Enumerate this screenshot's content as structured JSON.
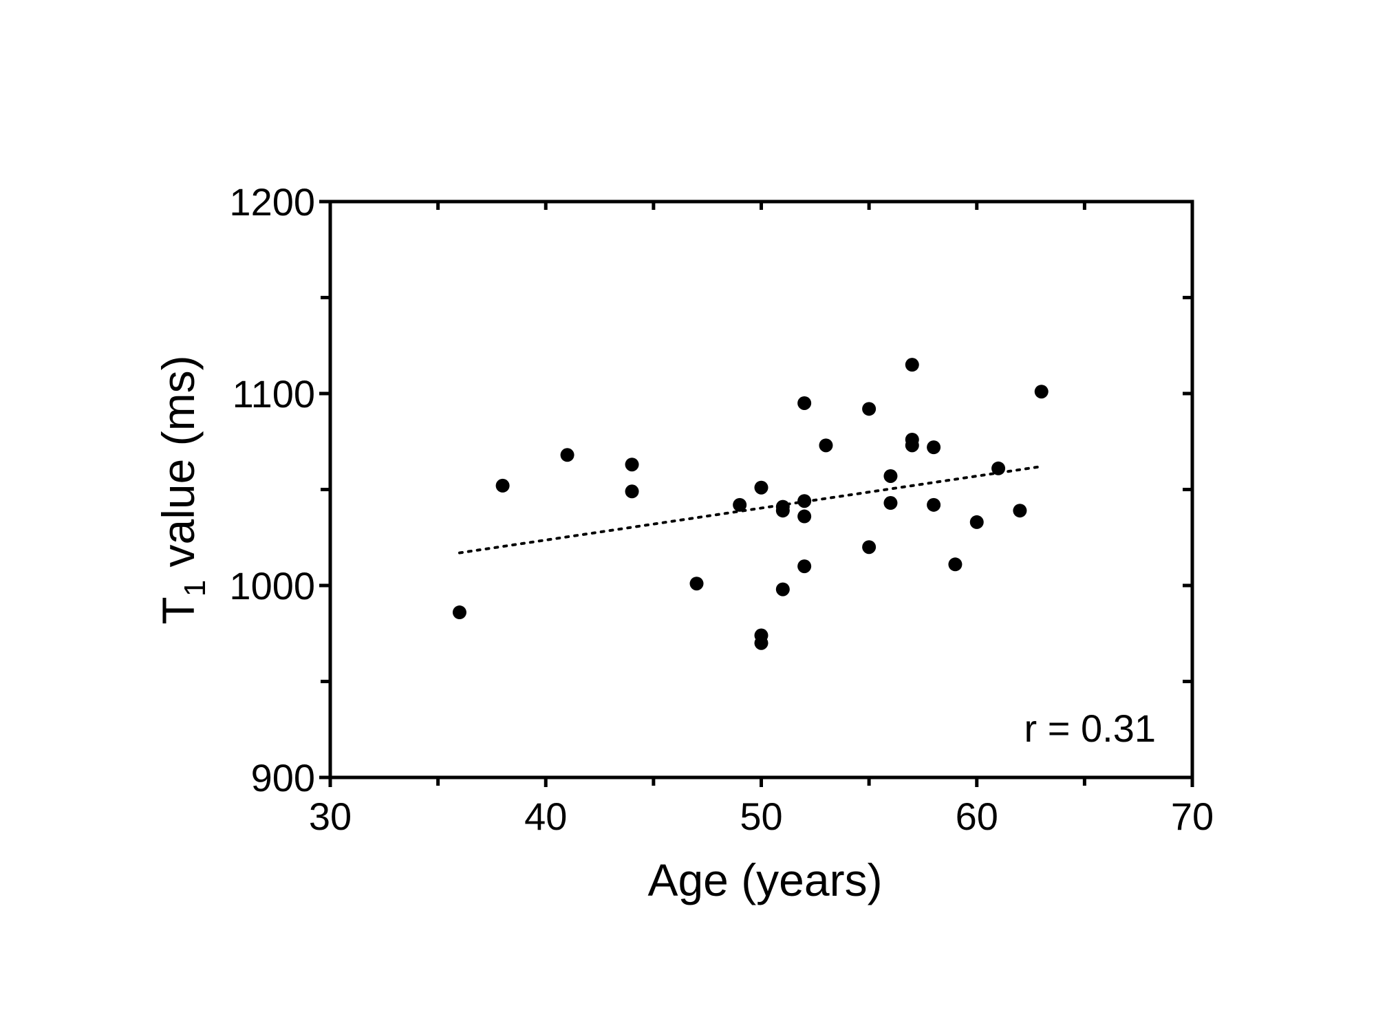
{
  "chart_data": {
    "type": "scatter",
    "xlabel": "Age (years)",
    "ylabel_main": "T",
    "ylabel_sub": "1",
    "ylabel_rest": " value (ms)",
    "xlim": [
      30,
      70
    ],
    "ylim": [
      900,
      1200
    ],
    "x_ticks": [
      30,
      40,
      50,
      60,
      70
    ],
    "x_minor_ticks": [
      35,
      45,
      55,
      65
    ],
    "y_ticks": [
      900,
      1000,
      1100,
      1200
    ],
    "y_minor_ticks": [
      950,
      1050,
      1150
    ],
    "annotation": "r = 0.31",
    "grid": false,
    "marker_color": "#000000",
    "trendline": {
      "style": "dotted",
      "x": [
        36,
        63
      ],
      "y": [
        1017,
        1062
      ]
    },
    "points": [
      {
        "x": 36,
        "y": 986
      },
      {
        "x": 38,
        "y": 1052
      },
      {
        "x": 41,
        "y": 1068
      },
      {
        "x": 44,
        "y": 1063
      },
      {
        "x": 44,
        "y": 1049
      },
      {
        "x": 47,
        "y": 1001
      },
      {
        "x": 49,
        "y": 1042
      },
      {
        "x": 50,
        "y": 1051
      },
      {
        "x": 50,
        "y": 974
      },
      {
        "x": 50,
        "y": 970
      },
      {
        "x": 51,
        "y": 1041
      },
      {
        "x": 51,
        "y": 1039
      },
      {
        "x": 51,
        "y": 998
      },
      {
        "x": 52,
        "y": 1095
      },
      {
        "x": 52,
        "y": 1044
      },
      {
        "x": 52,
        "y": 1036
      },
      {
        "x": 52,
        "y": 1010
      },
      {
        "x": 53,
        "y": 1073
      },
      {
        "x": 55,
        "y": 1092
      },
      {
        "x": 55,
        "y": 1020
      },
      {
        "x": 56,
        "y": 1057
      },
      {
        "x": 56,
        "y": 1043
      },
      {
        "x": 57,
        "y": 1115
      },
      {
        "x": 57,
        "y": 1076
      },
      {
        "x": 57,
        "y": 1073
      },
      {
        "x": 58,
        "y": 1072
      },
      {
        "x": 58,
        "y": 1042
      },
      {
        "x": 59,
        "y": 1011
      },
      {
        "x": 60,
        "y": 1033
      },
      {
        "x": 61,
        "y": 1061
      },
      {
        "x": 62,
        "y": 1039
      },
      {
        "x": 63,
        "y": 1101
      }
    ]
  }
}
